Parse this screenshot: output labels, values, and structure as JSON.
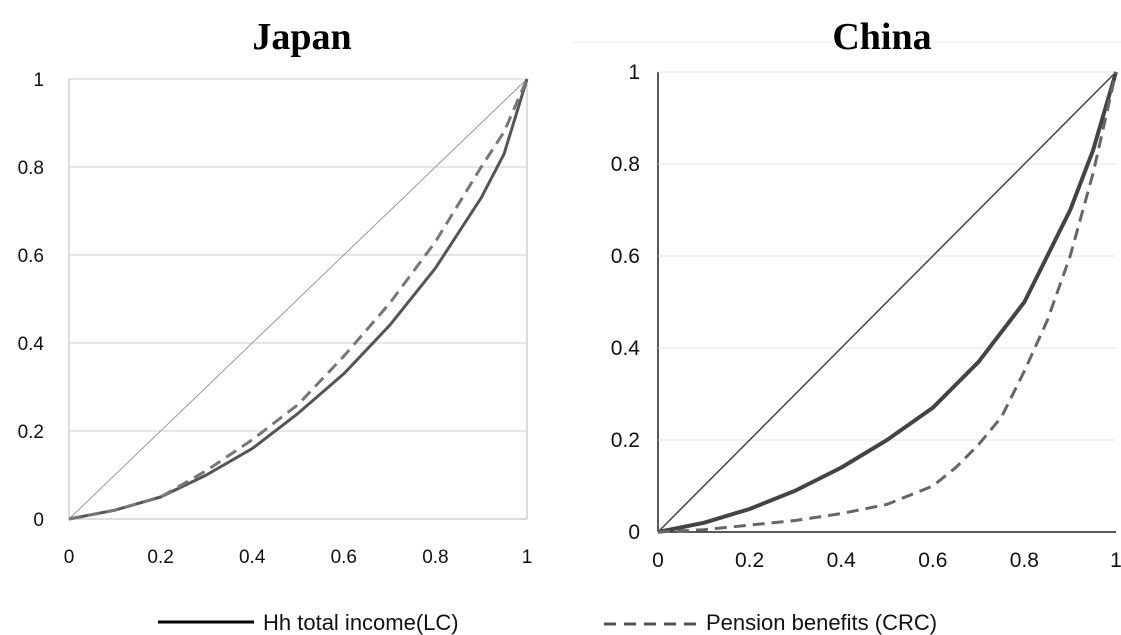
{
  "chart_data": [
    {
      "type": "line",
      "title": "Japan",
      "xlabel": "",
      "ylabel": "",
      "xlim": [
        0,
        1
      ],
      "ylim": [
        0,
        1
      ],
      "x_ticks": [
        "0",
        "0.2",
        "0.4",
        "0.6",
        "0.8",
        "1"
      ],
      "y_ticks": [
        "0",
        "0.2",
        "0.4",
        "0.6",
        "0.8",
        "1"
      ],
      "grid": "horizontal",
      "series": [
        {
          "name": "",
          "style": "solid-thin",
          "color": "#999999",
          "x": [
            0,
            1
          ],
          "y": [
            0,
            1
          ]
        },
        {
          "name": "Hh total income(LC)",
          "style": "solid",
          "color": "#555555",
          "x": [
            0,
            0.1,
            0.2,
            0.3,
            0.4,
            0.5,
            0.6,
            0.7,
            0.8,
            0.9,
            0.95,
            1
          ],
          "y": [
            0,
            0.02,
            0.05,
            0.1,
            0.16,
            0.24,
            0.33,
            0.44,
            0.57,
            0.73,
            0.83,
            1
          ]
        },
        {
          "name": "Pension benefits (CRC)",
          "style": "dashed",
          "color": "#777777",
          "x": [
            0,
            0.1,
            0.2,
            0.3,
            0.4,
            0.5,
            0.6,
            0.7,
            0.8,
            0.9,
            0.95,
            1
          ],
          "y": [
            0,
            0.02,
            0.05,
            0.11,
            0.18,
            0.26,
            0.37,
            0.49,
            0.63,
            0.8,
            0.88,
            1
          ]
        }
      ]
    },
    {
      "type": "line",
      "title": "China",
      "xlabel": "",
      "ylabel": "",
      "xlim": [
        0,
        1
      ],
      "ylim": [
        0,
        1
      ],
      "x_ticks": [
        "0",
        "0.2",
        "0.4",
        "0.6",
        "0.8",
        "1"
      ],
      "y_ticks": [
        "0",
        "0.2",
        "0.4",
        "0.6",
        "0.8",
        "1"
      ],
      "grid": "horizontal",
      "series": [
        {
          "name": "",
          "style": "solid-thin",
          "color": "#444444",
          "x": [
            0,
            1
          ],
          "y": [
            0,
            1
          ]
        },
        {
          "name": "Hh total income(LC)",
          "style": "solid",
          "color": "#444444",
          "x": [
            0,
            0.1,
            0.2,
            0.3,
            0.4,
            0.5,
            0.6,
            0.7,
            0.8,
            0.9,
            0.95,
            1
          ],
          "y": [
            0,
            0.02,
            0.05,
            0.09,
            0.14,
            0.2,
            0.27,
            0.37,
            0.5,
            0.7,
            0.83,
            1
          ]
        },
        {
          "name": "Pension benefits (CRC)",
          "style": "dashed",
          "color": "#666666",
          "x": [
            0,
            0.1,
            0.2,
            0.3,
            0.4,
            0.5,
            0.6,
            0.65,
            0.7,
            0.75,
            0.8,
            0.85,
            0.9,
            0.95,
            1
          ],
          "y": [
            0,
            0.005,
            0.015,
            0.025,
            0.04,
            0.06,
            0.1,
            0.14,
            0.19,
            0.25,
            0.35,
            0.46,
            0.6,
            0.78,
            1
          ]
        }
      ]
    }
  ],
  "legend": {
    "placement": "bottom-center",
    "items": [
      {
        "label": "Hh total income(LC)",
        "style": "solid"
      },
      {
        "label": "Pension benefits (CRC)",
        "style": "dashed"
      }
    ]
  }
}
